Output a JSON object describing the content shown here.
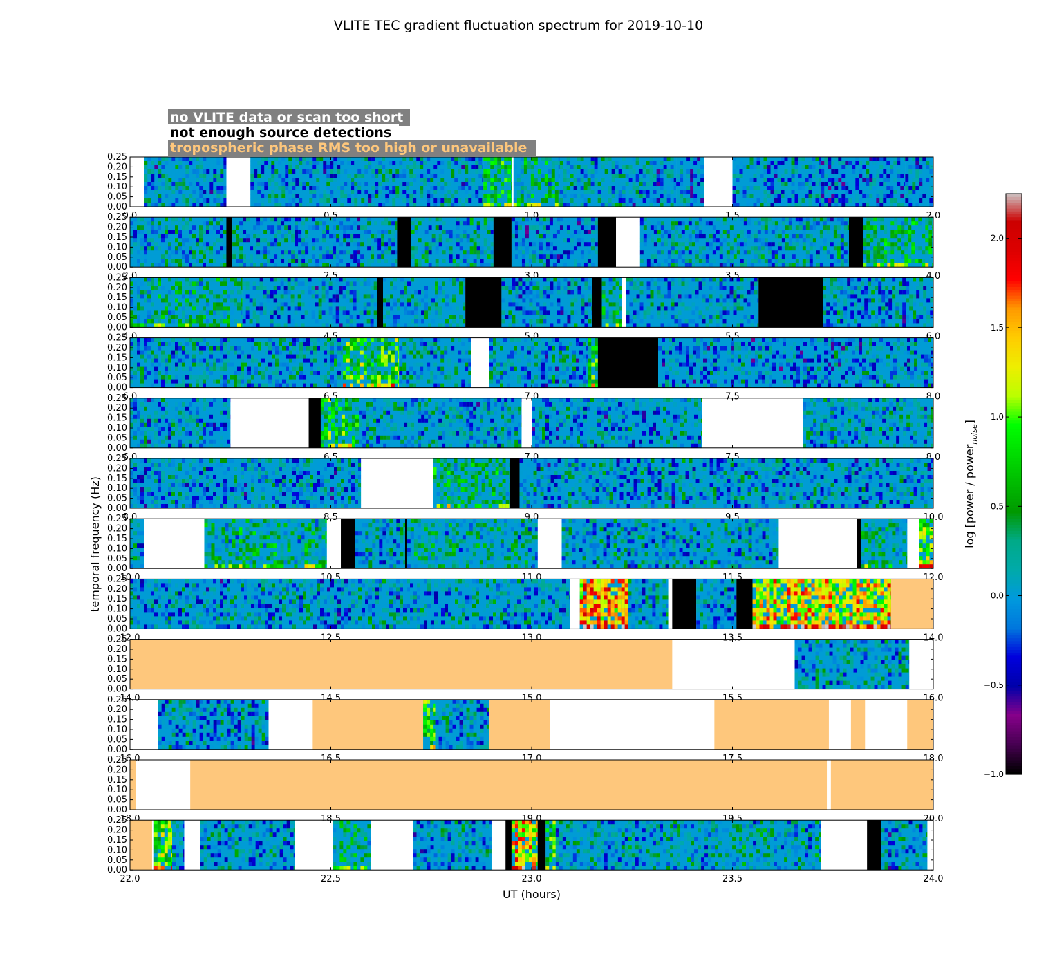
{
  "chart_data": {
    "type": "heatmap",
    "title": "VLITE TEC gradient fluctuation spectrum for 2019-10-10",
    "xlabel": "UT (hours)",
    "ylabel": "temporal frequency (Hz)",
    "ylim": [
      0,
      0.25
    ],
    "yticks": [
      "0.00",
      "0.05",
      "0.10",
      "0.15",
      "0.20",
      "0.25"
    ],
    "legend": [
      {
        "text": "no VLITE data or scan too short",
        "color": "#ffffff"
      },
      {
        "text": "not enough source detections",
        "color": "#000000"
      },
      {
        "text": "tropospheric phase RMS too high or unavailable",
        "color": "#fec77c"
      }
    ],
    "colorbar": {
      "label": "log [power / power",
      "label_sub": "noise",
      "label_end": "]",
      "range": [
        -1.0,
        2.25
      ],
      "ticks": [
        "2.0",
        "1.5",
        "1.0",
        "0.5",
        "0.0",
        "−0.5",
        "−1.0"
      ],
      "tick_values": [
        2.0,
        1.5,
        1.0,
        0.5,
        0.0,
        -0.5,
        -1.0
      ],
      "colormap": "nipy_spectral"
    },
    "panels": [
      {
        "xlim": [
          0,
          2
        ],
        "xticks": [
          "0.0",
          "0.5",
          "1.0",
          "1.5",
          "2.0"
        ],
        "segments": [
          [
            0,
            0.035,
            "nodata"
          ],
          [
            0.035,
            0.24,
            "data",
            0.0
          ],
          [
            0.24,
            0.3,
            "nodata"
          ],
          [
            0.3,
            0.88,
            "data",
            0.0
          ],
          [
            0.88,
            0.95,
            "data",
            0.6
          ],
          [
            0.95,
            0.955,
            "nodata"
          ],
          [
            0.955,
            1.07,
            "data",
            0.3
          ],
          [
            1.07,
            1.36,
            "data",
            0.0
          ],
          [
            1.36,
            1.43,
            "data",
            -0.1
          ],
          [
            1.43,
            1.5,
            "nodata"
          ],
          [
            1.5,
            1.72,
            "data",
            -0.05
          ],
          [
            1.72,
            1.93,
            "data",
            -0.1
          ],
          [
            1.93,
            2.0,
            "data",
            -0.05
          ]
        ]
      },
      {
        "xlim": [
          2,
          4
        ],
        "xticks": [
          "2.0",
          "2.5",
          "3.0",
          "3.5",
          "4.0"
        ],
        "segments": [
          [
            2,
            2.24,
            "data",
            0.05
          ],
          [
            2.24,
            2.255,
            "black"
          ],
          [
            2.255,
            2.665,
            "data",
            0.0
          ],
          [
            2.665,
            2.7,
            "black"
          ],
          [
            2.7,
            2.905,
            "data",
            0.1
          ],
          [
            2.905,
            2.95,
            "black"
          ],
          [
            2.95,
            3.165,
            "data",
            -0.05
          ],
          [
            3.165,
            3.21,
            "black"
          ],
          [
            3.21,
            3.27,
            "nodata"
          ],
          [
            3.27,
            3.79,
            "data",
            0.05
          ],
          [
            3.79,
            3.825,
            "black"
          ],
          [
            3.825,
            4.0,
            "data",
            0.4
          ]
        ]
      },
      {
        "xlim": [
          4,
          6
        ],
        "xticks": [
          "4.0",
          "4.5",
          "5.0",
          "5.5",
          "6.0"
        ],
        "segments": [
          [
            4,
            4.28,
            "data",
            0.25
          ],
          [
            4.28,
            4.615,
            "data",
            0.0
          ],
          [
            4.615,
            4.63,
            "black"
          ],
          [
            4.63,
            4.835,
            "data",
            0.1
          ],
          [
            4.835,
            4.925,
            "black"
          ],
          [
            4.925,
            5.15,
            "data",
            0.0
          ],
          [
            5.15,
            5.175,
            "black"
          ],
          [
            5.175,
            5.225,
            "data",
            0.3
          ],
          [
            5.225,
            5.235,
            "nodata"
          ],
          [
            5.235,
            5.565,
            "data",
            0.0
          ],
          [
            5.565,
            5.725,
            "black"
          ],
          [
            5.725,
            6.0,
            "data",
            0.0
          ]
        ]
      },
      {
        "xlim": [
          6,
          8
        ],
        "xticks": [
          "6.0",
          "6.5",
          "7.0",
          "7.5",
          "8.0"
        ],
        "segments": [
          [
            6,
            6.53,
            "data",
            0.05
          ],
          [
            6.53,
            6.67,
            "data",
            0.8
          ],
          [
            6.67,
            6.85,
            "data",
            0.1
          ],
          [
            6.85,
            6.895,
            "nodata"
          ],
          [
            6.895,
            7.14,
            "data",
            0.0
          ],
          [
            7.14,
            7.165,
            "data",
            0.6
          ],
          [
            7.165,
            7.315,
            "black"
          ],
          [
            7.315,
            8.0,
            "data",
            -0.1
          ]
        ]
      },
      {
        "xlim": [
          6,
          8
        ],
        "xticks": [
          "6.0",
          "6.5",
          "7.0",
          "7.5",
          "8.0"
        ],
        "segments": [
          [
            6,
            6.25,
            "data",
            0.0
          ],
          [
            6.25,
            6.445,
            "nodata"
          ],
          [
            6.445,
            6.475,
            "black"
          ],
          [
            6.475,
            6.57,
            "data",
            0.7
          ],
          [
            6.57,
            6.975,
            "data",
            0.0
          ],
          [
            6.975,
            7.0,
            "nodata"
          ],
          [
            7.0,
            7.425,
            "data",
            -0.05
          ],
          [
            7.425,
            7.675,
            "nodata"
          ],
          [
            7.675,
            8.0,
            "data",
            0.05
          ]
        ]
      },
      {
        "xlim": [
          8,
          10
        ],
        "xticks": [
          "8.0",
          "8.5",
          "9.0",
          "9.5",
          "10.0"
        ],
        "segments": [
          [
            8,
            8.575,
            "data",
            0.0
          ],
          [
            8.575,
            8.755,
            "nodata"
          ],
          [
            8.755,
            8.945,
            "data",
            0.4
          ],
          [
            8.945,
            8.97,
            "black"
          ],
          [
            8.97,
            10.0,
            "data",
            0.0
          ]
        ]
      },
      {
        "xlim": [
          10,
          12
        ],
        "xticks": [
          "10.0",
          "10.5",
          "11.0",
          "11.5",
          "12.0"
        ],
        "segments": [
          [
            10,
            10.035,
            "data",
            0.0
          ],
          [
            10.035,
            10.185,
            "nodata"
          ],
          [
            10.185,
            10.49,
            "data",
            0.3
          ],
          [
            10.49,
            10.525,
            "nodata"
          ],
          [
            10.525,
            10.56,
            "black"
          ],
          [
            10.56,
            10.685,
            "data",
            0.05
          ],
          [
            10.685,
            10.69,
            "black"
          ],
          [
            10.69,
            11.015,
            "data",
            0.2
          ],
          [
            11.015,
            11.075,
            "nodata"
          ],
          [
            11.075,
            11.615,
            "data",
            0.05
          ],
          [
            11.615,
            11.81,
            "nodata"
          ],
          [
            11.81,
            11.82,
            "black"
          ],
          [
            11.82,
            11.935,
            "data",
            0.3
          ],
          [
            11.935,
            11.965,
            "nodata"
          ],
          [
            11.965,
            12.0,
            "data",
            1.1
          ]
        ]
      },
      {
        "xlim": [
          12,
          14
        ],
        "xticks": [
          "12.0",
          "12.5",
          "13.0",
          "13.5",
          "14.0"
        ],
        "segments": [
          [
            12,
            13.095,
            "data",
            0.0
          ],
          [
            13.095,
            13.12,
            "nodata"
          ],
          [
            13.12,
            13.24,
            "data",
            1.5
          ],
          [
            13.24,
            13.34,
            "data",
            0.05
          ],
          [
            13.34,
            13.35,
            "nodata"
          ],
          [
            13.35,
            13.41,
            "black"
          ],
          [
            13.41,
            13.51,
            "data",
            0.0
          ],
          [
            13.51,
            13.55,
            "black"
          ],
          [
            13.55,
            13.895,
            "data",
            1.3
          ],
          [
            13.895,
            14.0,
            "tropo"
          ]
        ]
      },
      {
        "xlim": [
          14,
          16
        ],
        "xticks": [
          "14.0",
          "14.5",
          "15.0",
          "15.5",
          "16.0"
        ],
        "segments": [
          [
            14,
            15.35,
            "tropo"
          ],
          [
            15.35,
            15.655,
            "nodata"
          ],
          [
            15.655,
            15.94,
            "data",
            0.1
          ],
          [
            15.94,
            16.0,
            "nodata"
          ]
        ]
      },
      {
        "xlim": [
          16,
          18
        ],
        "xticks": [
          "16.0",
          "16.5",
          "17.0",
          "17.5",
          "18.0"
        ],
        "segments": [
          [
            16,
            16.07,
            "nodata"
          ],
          [
            16.07,
            16.345,
            "data",
            0.0
          ],
          [
            16.345,
            16.455,
            "nodata"
          ],
          [
            16.455,
            16.73,
            "tropo"
          ],
          [
            16.73,
            16.76,
            "data",
            0.8
          ],
          [
            16.76,
            16.895,
            "data",
            0.0
          ],
          [
            16.895,
            17.045,
            "tropo"
          ],
          [
            17.045,
            17.455,
            "nodata"
          ],
          [
            17.455,
            17.74,
            "tropo"
          ],
          [
            17.74,
            17.795,
            "nodata"
          ],
          [
            17.795,
            17.83,
            "tropo"
          ],
          [
            17.83,
            17.935,
            "nodata"
          ],
          [
            17.935,
            18.0,
            "tropo"
          ]
        ]
      },
      {
        "xlim": [
          18,
          20
        ],
        "xticks": [
          "18.0",
          "18.5",
          "19.0",
          "19.5",
          "20.0"
        ],
        "segments": [
          [
            18,
            18.015,
            "tropo"
          ],
          [
            18.015,
            18.15,
            "nodata"
          ],
          [
            18.15,
            19.735,
            "tropo"
          ],
          [
            19.735,
            19.745,
            "nodata"
          ],
          [
            19.745,
            20.0,
            "tropo"
          ]
        ]
      },
      {
        "xlim": [
          22,
          24
        ],
        "xticks": [
          "22.0",
          "22.5",
          "23.0",
          "23.5",
          "24.0"
        ],
        "segments": [
          [
            22,
            22.055,
            "tropo"
          ],
          [
            22.055,
            22.06,
            "nodata"
          ],
          [
            22.06,
            22.105,
            "data",
            0.9
          ],
          [
            22.105,
            22.135,
            "data",
            0.0
          ],
          [
            22.135,
            22.175,
            "nodata"
          ],
          [
            22.175,
            22.41,
            "data",
            0.0
          ],
          [
            22.41,
            22.505,
            "nodata"
          ],
          [
            22.505,
            22.6,
            "data",
            0.3
          ],
          [
            22.6,
            22.705,
            "nodata"
          ],
          [
            22.705,
            22.9,
            "data",
            0.0
          ],
          [
            22.9,
            22.935,
            "nodata"
          ],
          [
            22.935,
            22.95,
            "black"
          ],
          [
            22.95,
            23.015,
            "data",
            1.3
          ],
          [
            23.015,
            23.035,
            "black"
          ],
          [
            23.035,
            23.06,
            "data",
            0.9
          ],
          [
            23.06,
            23.285,
            "data",
            0.05
          ],
          [
            23.285,
            23.31,
            "data",
            0.0
          ],
          [
            23.31,
            23.72,
            "data",
            0.1
          ],
          [
            23.72,
            23.835,
            "nodata"
          ],
          [
            23.835,
            23.87,
            "black"
          ],
          [
            23.87,
            23.985,
            "data",
            0.0
          ],
          [
            23.985,
            24.0,
            "nodata"
          ]
        ]
      }
    ]
  }
}
